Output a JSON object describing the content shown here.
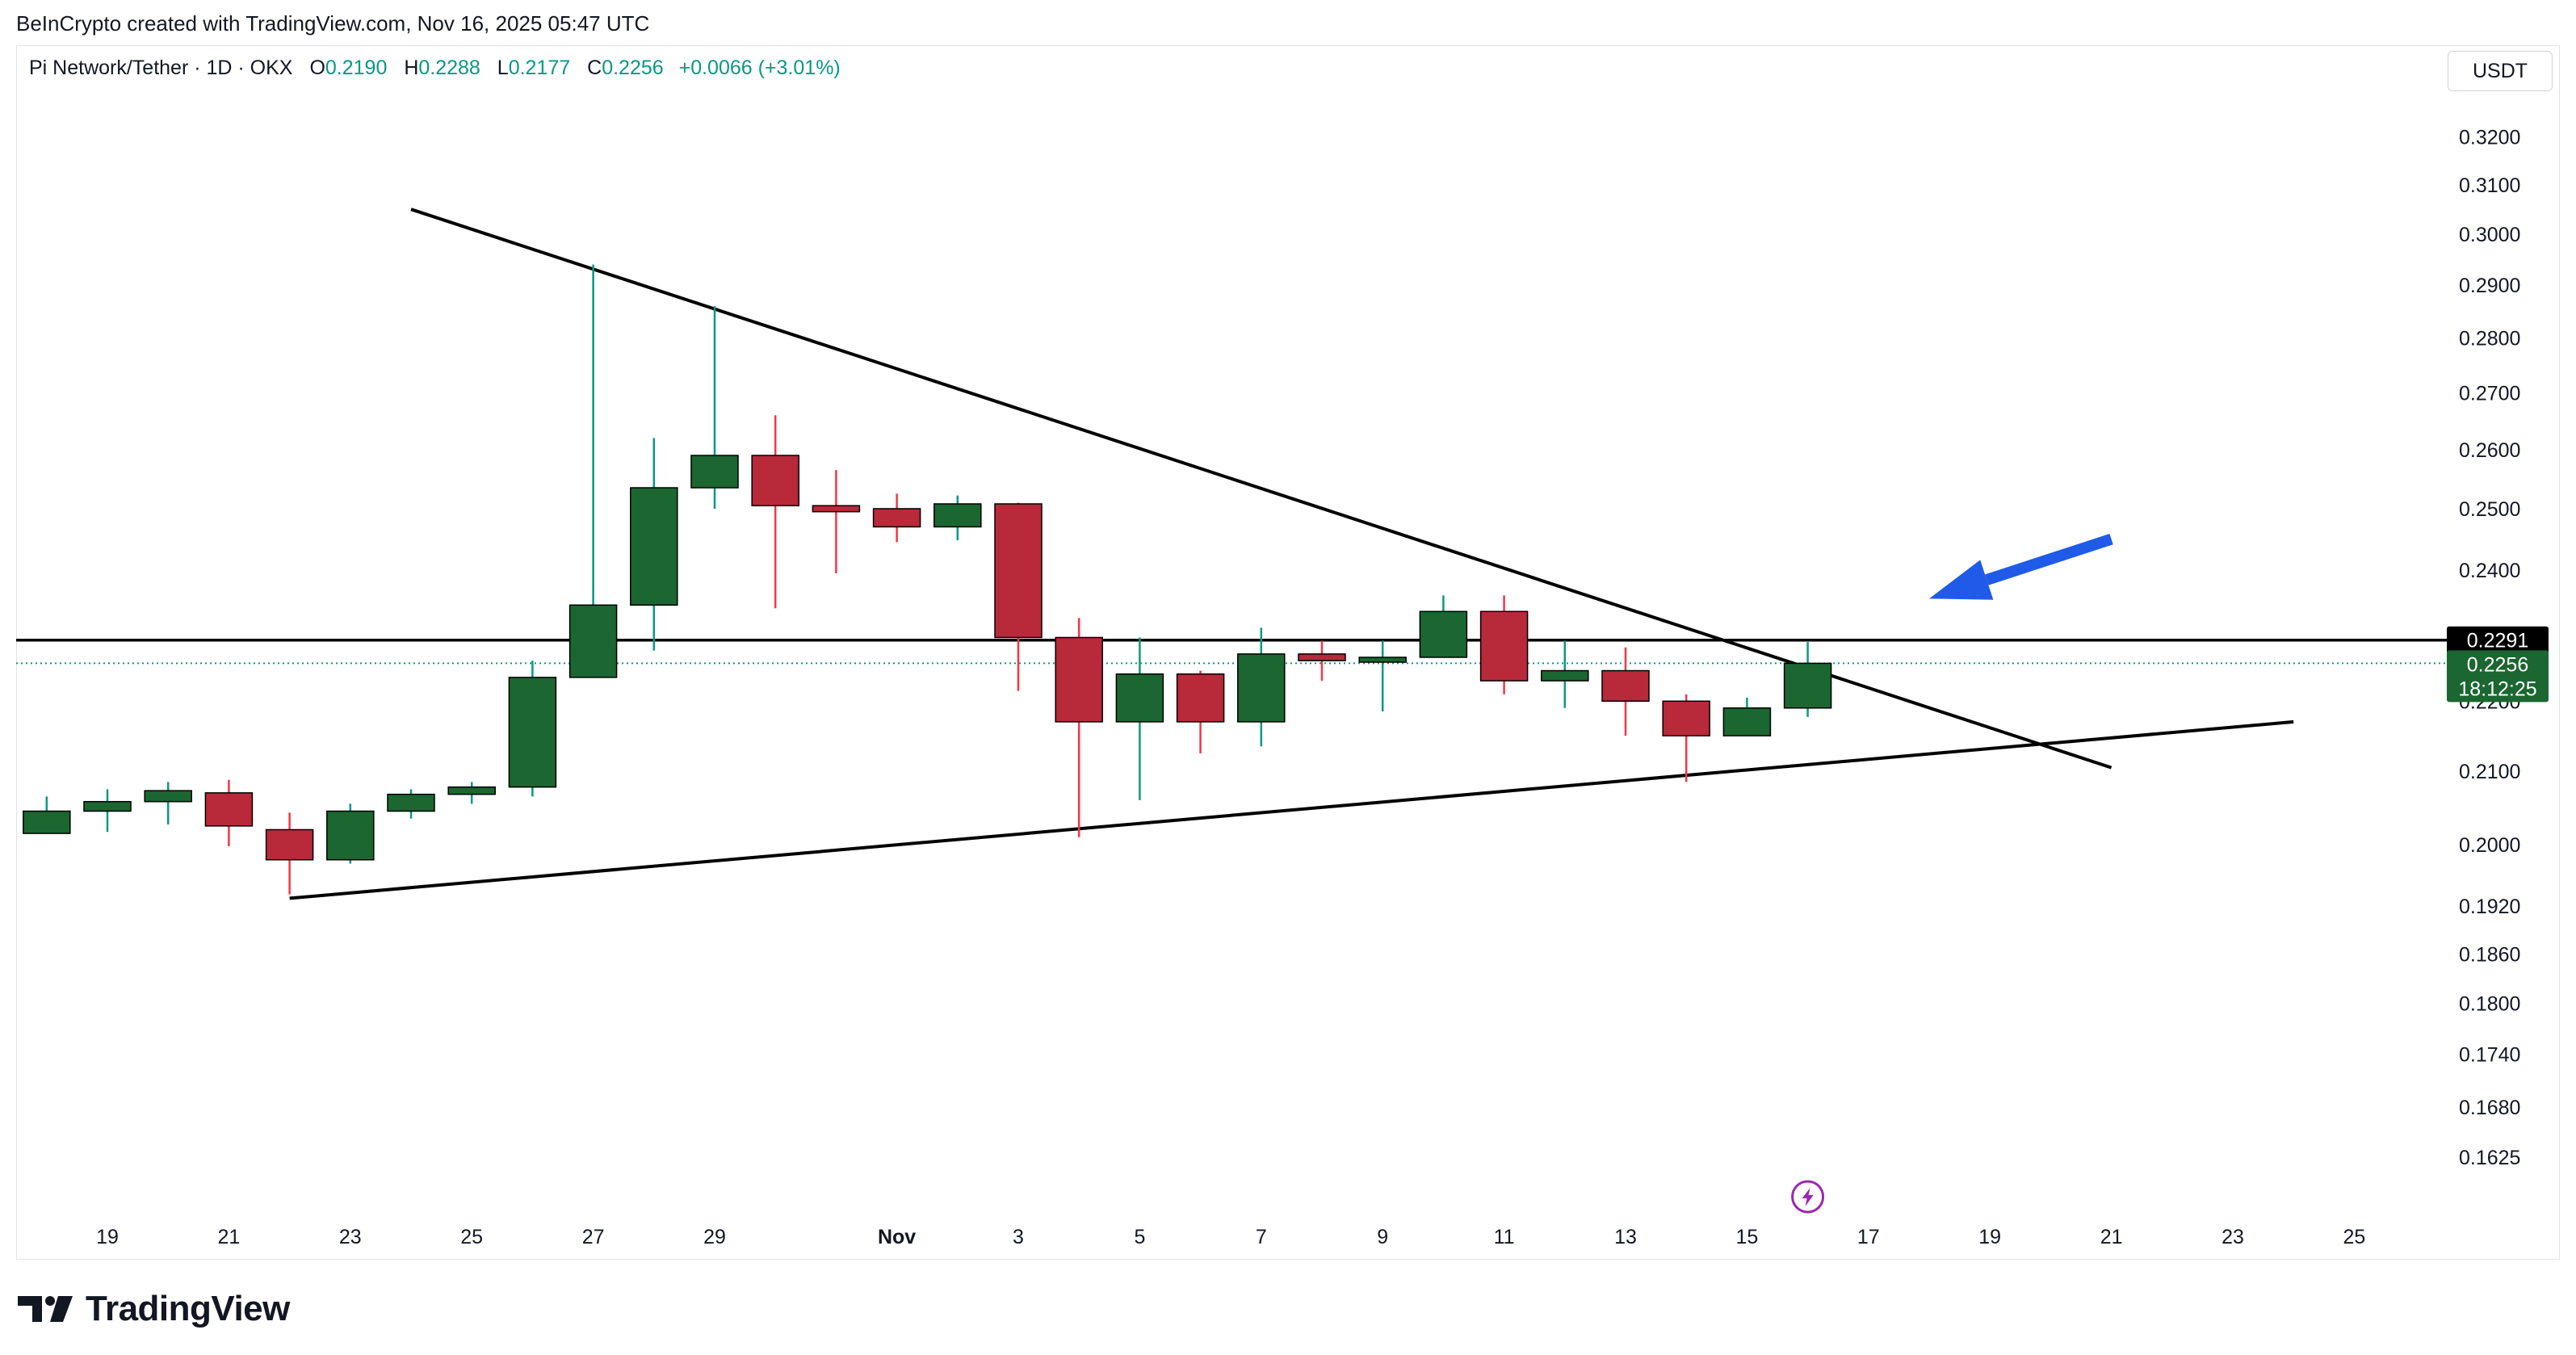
{
  "header": {
    "credit": "BeInCrypto created with TradingView.com, Nov 16, 2025 05:47 UTC"
  },
  "legend": {
    "symbol": "Pi Network/Tether · 1D · OKX",
    "open_label": "O",
    "open": "0.2190",
    "high_label": "H",
    "high": "0.2288",
    "low_label": "L",
    "low": "0.2177",
    "close_label": "C",
    "close": "0.2256",
    "change": "+0.0066 (+3.01%)"
  },
  "currency_button": "USDT",
  "colors": {
    "up": "#1b6631",
    "down": "#b8293a",
    "up_wick": "#089981",
    "down_wick": "#f23645",
    "line": "#000000",
    "arrow": "#1f5be8",
    "legend_value": "#089981"
  },
  "chart_data": {
    "type": "candlestick",
    "symbol": "Pi Network/Tether",
    "interval": "1D",
    "exchange": "OKX",
    "y_scale": "log",
    "y_ticks": [
      "0.3200",
      "0.3100",
      "0.3000",
      "0.2900",
      "0.2800",
      "0.2700",
      "0.2600",
      "0.2500",
      "0.2400",
      "0.2200",
      "0.2100",
      "0.2000",
      "0.1920",
      "0.1860",
      "0.1800",
      "0.1740",
      "0.1680",
      "0.1625"
    ],
    "x_ticks": [
      {
        "date": "2025-10-19",
        "label": "19"
      },
      {
        "date": "2025-10-21",
        "label": "21"
      },
      {
        "date": "2025-10-23",
        "label": "23"
      },
      {
        "date": "2025-10-25",
        "label": "25"
      },
      {
        "date": "2025-10-27",
        "label": "27"
      },
      {
        "date": "2025-10-29",
        "label": "29"
      },
      {
        "date": "2025-11-01",
        "label": "Nov"
      },
      {
        "date": "2025-11-03",
        "label": "3"
      },
      {
        "date": "2025-11-05",
        "label": "5"
      },
      {
        "date": "2025-11-07",
        "label": "7"
      },
      {
        "date": "2025-11-09",
        "label": "9"
      },
      {
        "date": "2025-11-11",
        "label": "11"
      },
      {
        "date": "2025-11-13",
        "label": "13"
      },
      {
        "date": "2025-11-15",
        "label": "15"
      },
      {
        "date": "2025-11-17",
        "label": "17"
      },
      {
        "date": "2025-11-19",
        "label": "19"
      },
      {
        "date": "2025-11-21",
        "label": "21"
      },
      {
        "date": "2025-11-23",
        "label": "23"
      },
      {
        "date": "2025-11-25",
        "label": "25"
      }
    ],
    "candles": [
      {
        "date": "2025-10-18",
        "open": 0.2015,
        "high": 0.2065,
        "low": 0.2015,
        "close": 0.2045
      },
      {
        "date": "2025-10-19",
        "open": 0.2045,
        "high": 0.2075,
        "low": 0.2017,
        "close": 0.2058
      },
      {
        "date": "2025-10-20",
        "open": 0.2058,
        "high": 0.2085,
        "low": 0.2027,
        "close": 0.2073
      },
      {
        "date": "2025-10-21",
        "open": 0.207,
        "high": 0.2088,
        "low": 0.1998,
        "close": 0.2025
      },
      {
        "date": "2025-10-22",
        "open": 0.202,
        "high": 0.2043,
        "low": 0.1935,
        "close": 0.198
      },
      {
        "date": "2025-10-23",
        "open": 0.198,
        "high": 0.2055,
        "low": 0.1975,
        "close": 0.2045
      },
      {
        "date": "2025-10-24",
        "open": 0.2045,
        "high": 0.2075,
        "low": 0.2035,
        "close": 0.2068
      },
      {
        "date": "2025-10-25",
        "open": 0.2068,
        "high": 0.2085,
        "low": 0.2055,
        "close": 0.2078
      },
      {
        "date": "2025-10-26",
        "open": 0.2078,
        "high": 0.226,
        "low": 0.2065,
        "close": 0.2235
      },
      {
        "date": "2025-10-27",
        "open": 0.2235,
        "high": 0.294,
        "low": 0.2235,
        "close": 0.2345
      },
      {
        "date": "2025-10-28",
        "open": 0.2345,
        "high": 0.262,
        "low": 0.2275,
        "close": 0.2535
      },
      {
        "date": "2025-10-29",
        "open": 0.2535,
        "high": 0.286,
        "low": 0.25,
        "close": 0.259
      },
      {
        "date": "2025-10-30",
        "open": 0.259,
        "high": 0.266,
        "low": 0.234,
        "close": 0.2505
      },
      {
        "date": "2025-10-31",
        "open": 0.2505,
        "high": 0.2565,
        "low": 0.2395,
        "close": 0.2495
      },
      {
        "date": "2025-11-01",
        "open": 0.25,
        "high": 0.2525,
        "low": 0.2445,
        "close": 0.247
      },
      {
        "date": "2025-11-02",
        "open": 0.247,
        "high": 0.2522,
        "low": 0.2448,
        "close": 0.2508
      },
      {
        "date": "2025-11-03",
        "open": 0.2508,
        "high": 0.251,
        "low": 0.2215,
        "close": 0.2295
      },
      {
        "date": "2025-11-04",
        "open": 0.2295,
        "high": 0.2325,
        "low": 0.201,
        "close": 0.217
      },
      {
        "date": "2025-11-05",
        "open": 0.217,
        "high": 0.2295,
        "low": 0.206,
        "close": 0.224
      },
      {
        "date": "2025-11-06",
        "open": 0.224,
        "high": 0.2245,
        "low": 0.2125,
        "close": 0.217
      },
      {
        "date": "2025-11-07",
        "open": 0.217,
        "high": 0.231,
        "low": 0.2135,
        "close": 0.227
      },
      {
        "date": "2025-11-08",
        "open": 0.227,
        "high": 0.229,
        "low": 0.223,
        "close": 0.226
      },
      {
        "date": "2025-11-09",
        "open": 0.226,
        "high": 0.229,
        "low": 0.2185,
        "close": 0.2265
      },
      {
        "date": "2025-11-10",
        "open": 0.2265,
        "high": 0.236,
        "low": 0.2265,
        "close": 0.2335
      },
      {
        "date": "2025-11-11",
        "open": 0.2335,
        "high": 0.236,
        "low": 0.221,
        "close": 0.223
      },
      {
        "date": "2025-11-12",
        "open": 0.223,
        "high": 0.229,
        "low": 0.219,
        "close": 0.2245
      },
      {
        "date": "2025-11-13",
        "open": 0.2245,
        "high": 0.228,
        "low": 0.215,
        "close": 0.22
      },
      {
        "date": "2025-11-14",
        "open": 0.22,
        "high": 0.221,
        "low": 0.2085,
        "close": 0.215
      },
      {
        "date": "2025-11-15",
        "open": 0.215,
        "high": 0.2205,
        "low": 0.215,
        "close": 0.219
      },
      {
        "date": "2025-11-16",
        "open": 0.219,
        "high": 0.2288,
        "low": 0.2177,
        "close": 0.2256
      }
    ],
    "horizontal_line": {
      "price": 0.2291,
      "label": "0.2291"
    },
    "last_price": {
      "price": 0.2256,
      "label": "0.2256",
      "countdown": "18:12:25"
    },
    "trendlines": [
      {
        "name": "descending-resistance",
        "from": {
          "date": "2025-10-24",
          "price": 0.305
        },
        "to": {
          "date": "2025-11-21",
          "price": 0.2105
        }
      },
      {
        "name": "ascending-support",
        "from": {
          "date": "2025-10-22",
          "price": 0.193
        },
        "to": {
          "date": "2025-11-24",
          "price": 0.217
        }
      }
    ],
    "annotation_arrow": {
      "from": {
        "date": "2025-11-21",
        "price": 0.245
      },
      "to": {
        "date": "2025-11-18",
        "price": 0.2355
      }
    }
  }
}
